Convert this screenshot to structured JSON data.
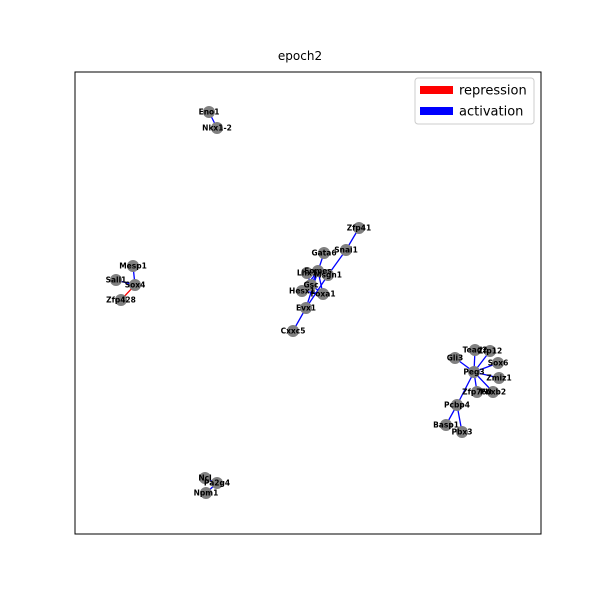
{
  "title": "epoch2",
  "colors": {
    "repression": "#ff0000",
    "activation": "#0000ff",
    "node": "#808080",
    "frame": "#000000"
  },
  "legend": [
    {
      "label": "repression",
      "color": "#ff0000"
    },
    {
      "label": "activation",
      "color": "#0000ff"
    }
  ],
  "nodes": [
    {
      "id": "Eno1",
      "label": "Eno1"
    },
    {
      "id": "Nkx1-2",
      "label": "Nkx1-2"
    },
    {
      "id": "Mesp1",
      "label": "Mesp1"
    },
    {
      "id": "Sall1",
      "label": "Sall1"
    },
    {
      "id": "Sox4",
      "label": "Sox4"
    },
    {
      "id": "Zfp428",
      "label": "Zfp428"
    },
    {
      "id": "Zfp41",
      "label": "Zfp41"
    },
    {
      "id": "Gata6",
      "label": "Gata6"
    },
    {
      "id": "Snai1",
      "label": "Snai1"
    },
    {
      "id": "Lhx1",
      "label": "Lhx1"
    },
    {
      "id": "Eomes",
      "label": "Eomes"
    },
    {
      "id": "Msgn1",
      "label": "Msgn1"
    },
    {
      "id": "Gsc",
      "label": "Gsc"
    },
    {
      "id": "Hesx1",
      "label": "Hesx1"
    },
    {
      "id": "Foxa1",
      "label": "Foxa1"
    },
    {
      "id": "Evx1",
      "label": "Evx1"
    },
    {
      "id": "Cxxc5",
      "label": "Cxxc5"
    },
    {
      "id": "Tead2",
      "label": "Tead2"
    },
    {
      "id": "Zfp12",
      "label": "Zfp12"
    },
    {
      "id": "Gli3",
      "label": "Gli3"
    },
    {
      "id": "Sox6",
      "label": "Sox6"
    },
    {
      "id": "Peg3",
      "label": "Peg3"
    },
    {
      "id": "Zmiz1",
      "label": "Zmiz1"
    },
    {
      "id": "Zfp760",
      "label": "Zfp760"
    },
    {
      "id": "Pbxb2",
      "label": "Pbxb2"
    },
    {
      "id": "Pcbp4",
      "label": "Pcbp4"
    },
    {
      "id": "Basp1",
      "label": "Basp1"
    },
    {
      "id": "Pbx3",
      "label": "Pbx3"
    },
    {
      "id": "Ncl",
      "label": "Ncl"
    },
    {
      "id": "Pa2g4",
      "label": "Pa2g4"
    },
    {
      "id": "Npm1",
      "label": "Npm1"
    }
  ],
  "edges": [
    {
      "from": "Eno1",
      "to": "Nkx1-2",
      "type": "activation"
    },
    {
      "from": "Mesp1",
      "to": "Sox4",
      "type": "activation"
    },
    {
      "from": "Sall1",
      "to": "Sox4",
      "type": "activation"
    },
    {
      "from": "Sox4",
      "to": "Zfp428",
      "type": "repression"
    },
    {
      "from": "Zfp41",
      "to": "Snai1",
      "type": "activation"
    },
    {
      "from": "Snai1",
      "to": "Msgn1",
      "type": "activation"
    },
    {
      "from": "Gata6",
      "to": "Eomes",
      "type": "activation"
    },
    {
      "from": "Eomes",
      "to": "Lhx1",
      "type": "activation"
    },
    {
      "from": "Eomes",
      "to": "Gsc",
      "type": "activation"
    },
    {
      "from": "Eomes",
      "to": "Msgn1",
      "type": "activation"
    },
    {
      "from": "Eomes",
      "to": "Foxa1",
      "type": "activation"
    },
    {
      "from": "Eomes",
      "to": "Hesx1",
      "type": "activation"
    },
    {
      "from": "Eomes",
      "to": "Evx1",
      "type": "activation"
    },
    {
      "from": "Gsc",
      "to": "Foxa1",
      "type": "activation"
    },
    {
      "from": "Lhx1",
      "to": "Gsc",
      "type": "activation"
    },
    {
      "from": "Evx1",
      "to": "Cxxc5",
      "type": "activation"
    },
    {
      "from": "Evx1",
      "to": "Msgn1",
      "type": "activation"
    },
    {
      "from": "Hesx1",
      "to": "Foxa1",
      "type": "activation"
    },
    {
      "from": "Peg3",
      "to": "Tead2",
      "type": "activation"
    },
    {
      "from": "Peg3",
      "to": "Zfp12",
      "type": "activation"
    },
    {
      "from": "Peg3",
      "to": "Gli3",
      "type": "activation"
    },
    {
      "from": "Peg3",
      "to": "Sox6",
      "type": "activation"
    },
    {
      "from": "Peg3",
      "to": "Zmiz1",
      "type": "activation"
    },
    {
      "from": "Peg3",
      "to": "Zfp760",
      "type": "activation"
    },
    {
      "from": "Peg3",
      "to": "Pbxb2",
      "type": "activation"
    },
    {
      "from": "Peg3",
      "to": "Pcbp4",
      "type": "activation"
    },
    {
      "from": "Pcbp4",
      "to": "Basp1",
      "type": "activation"
    },
    {
      "from": "Pcbp4",
      "to": "Pbx3",
      "type": "activation"
    },
    {
      "from": "Ncl",
      "to": "Pa2g4",
      "type": "activation"
    },
    {
      "from": "Pa2g4",
      "to": "Npm1",
      "type": "activation"
    }
  ]
}
